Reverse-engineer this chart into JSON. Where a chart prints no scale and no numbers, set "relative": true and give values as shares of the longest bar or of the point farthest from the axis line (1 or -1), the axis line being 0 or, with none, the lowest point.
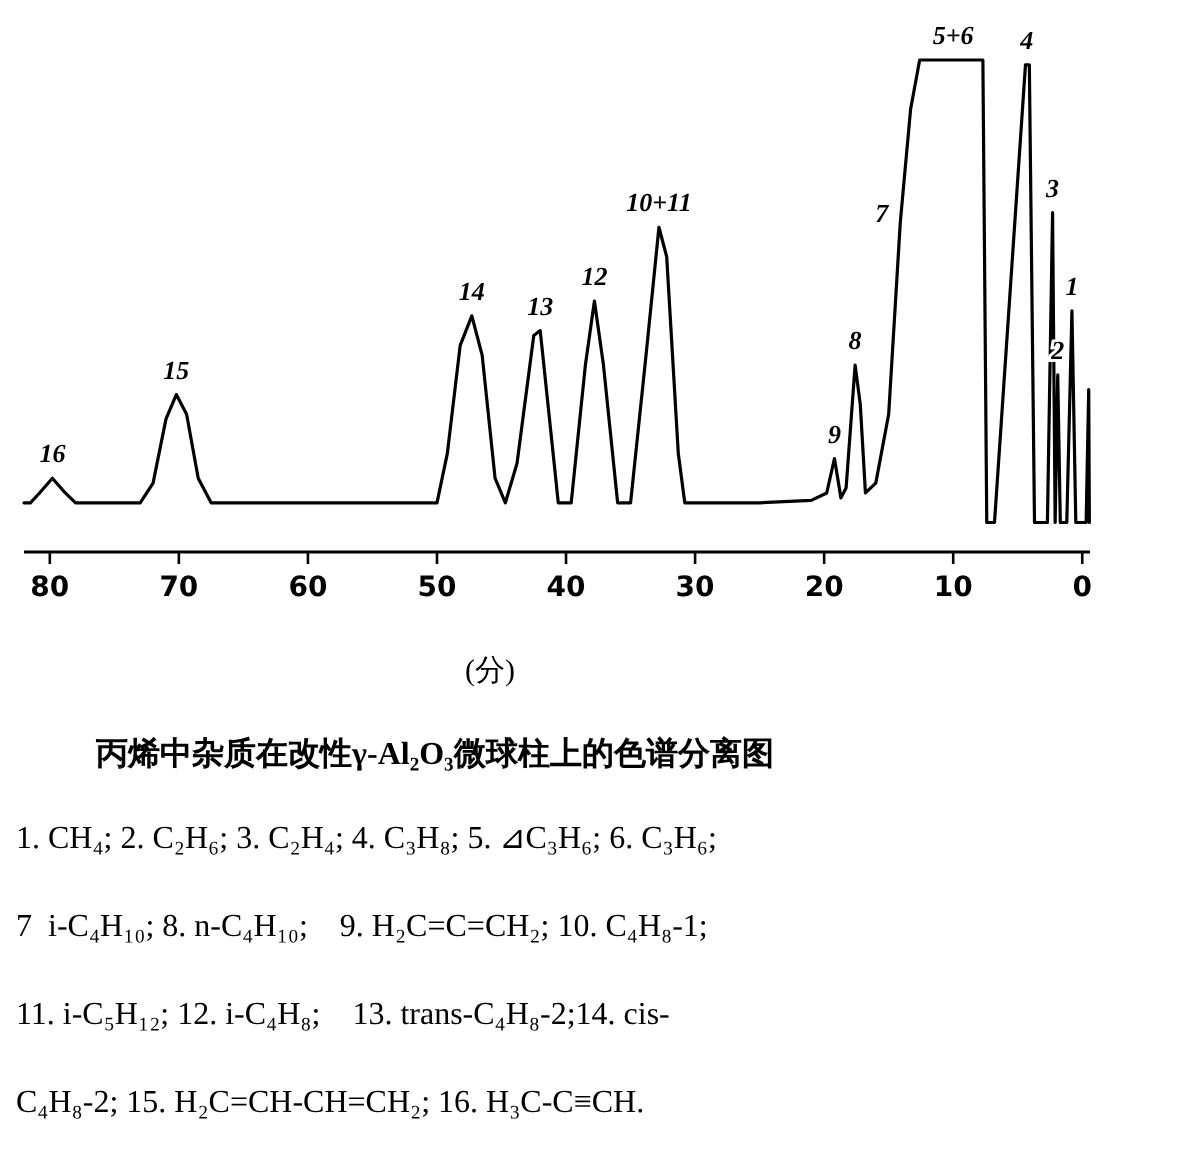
{
  "chart_data": {
    "type": "line",
    "relative": true,
    "tick_labels": "x",
    "grid": false,
    "title": "丙烯中杂质在改性γ-Al₂O₃微球柱上的色谱分离图",
    "xlabel": "(分)",
    "xlim": [
      82,
      -0.6
    ],
    "xticks": [
      80,
      70,
      60,
      50,
      40,
      30,
      20,
      10,
      0
    ],
    "x": [
      82,
      81.5,
      80.8,
      79.8,
      78.8,
      78,
      73,
      72,
      71,
      70.2,
      69.4,
      68.5,
      67.5,
      50,
      49.2,
      48.2,
      47.3,
      46.5,
      45.5,
      44.7,
      43.8,
      42.5,
      42,
      41.4,
      40.6,
      39.6,
      38.5,
      37.8,
      37.1,
      36,
      35,
      33.8,
      32.8,
      32.2,
      31.3,
      30.8,
      25,
      21,
      19.8,
      19.2,
      18.7,
      18.3,
      17.6,
      17.2,
      16.8,
      16,
      15,
      14.1,
      13.3,
      12.6,
      7.7,
      7.4,
      6.8,
      4.4,
      4.1,
      3.7,
      2.7,
      2.3,
      2.1,
      1.9,
      1.7,
      1.2,
      0.8,
      0.5,
      -0.3,
      -0.5,
      -0.55
    ],
    "series": [
      {
        "color": "#000000",
        "values": [
          0.1,
          0.1,
          0.12,
          0.15,
          0.12,
          0.1,
          0.1,
          0.14,
          0.27,
          0.32,
          0.28,
          0.15,
          0.1,
          0.1,
          0.2,
          0.42,
          0.48,
          0.4,
          0.15,
          0.1,
          0.18,
          0.44,
          0.45,
          0.3,
          0.1,
          0.1,
          0.38,
          0.51,
          0.38,
          0.1,
          0.1,
          0.4,
          0.66,
          0.6,
          0.2,
          0.1,
          0.1,
          0.105,
          0.12,
          0.19,
          0.11,
          0.13,
          0.38,
          0.3,
          0.12,
          0.14,
          0.28,
          0.67,
          0.9,
          1,
          1,
          0.06,
          0.06,
          0.99,
          0.99,
          0.06,
          0.06,
          0.69,
          0.06,
          0.36,
          0.06,
          0.06,
          0.49,
          0.06,
          0.06,
          0.33,
          0.06
        ]
      }
    ],
    "annotations": [
      {
        "text": "16",
        "x": 79.8,
        "y": 0.15
      },
      {
        "text": "15",
        "x": 70.2,
        "y": 0.32
      },
      {
        "text": "14",
        "x": 47.3,
        "y": 0.48
      },
      {
        "text": "13",
        "x": 42,
        "y": 0.45
      },
      {
        "text": "12",
        "x": 37.8,
        "y": 0.51
      },
      {
        "text": "10+11",
        "x": 32.8,
        "y": 0.66
      },
      {
        "text": "9",
        "x": 19.2,
        "y": 0.19
      },
      {
        "text": "8",
        "x": 17.6,
        "y": 0.38
      },
      {
        "text": "7",
        "x": 14.1,
        "y": 0.67
      },
      {
        "text": "5+6",
        "x": 10,
        "y": 1
      },
      {
        "text": "4",
        "x": 4.3,
        "y": 0.99
      },
      {
        "text": "3",
        "x": 2.3,
        "y": 0.69
      },
      {
        "text": "2",
        "x": 1.9,
        "y": 0.36
      },
      {
        "text": "1",
        "x": 0.8,
        "y": 0.49
      },
      "1. CH₄; 2. C₂H₆; 3. C₂H₄; 4. C₃H₈; 5. ⊿C₃H₆; 6. C₃H₆;",
      "7  i-C₄H₁₀; 8. n-C₄H₁₀;    9. H₂C=C=CH₂; 10. C₄H₈-1;",
      "11. i-C₅H₁₂; 12. i-C₄H₈;    13. trans-C₄H₈-2;14. cis-",
      "C₄H₈-2; 15. H₂C=CH-CH=CH₂; 16. H₃C-C≡CH."
    ]
  }
}
